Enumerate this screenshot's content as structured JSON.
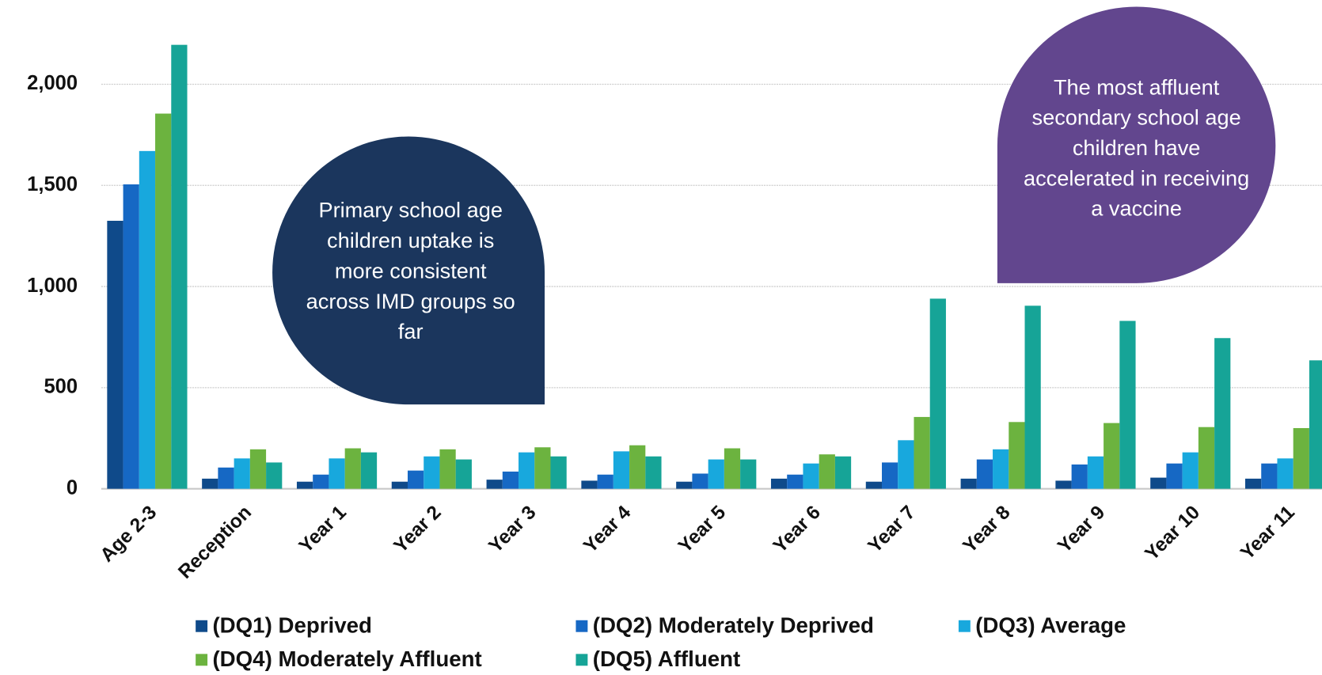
{
  "chart_data": {
    "type": "bar",
    "categories": [
      "Age 2-3",
      "Reception",
      "Year 1",
      "Year 2",
      "Year 3",
      "Year 4",
      "Year 5",
      "Year 6",
      "Year 7",
      "Year 8",
      "Year 9",
      "Year 10",
      "Year 11"
    ],
    "series": [
      {
        "name": "(DQ1) Deprived",
        "color": "#0f4a8a",
        "values": [
          1325,
          50,
          35,
          35,
          45,
          40,
          35,
          50,
          35,
          50,
          40,
          55,
          50
        ]
      },
      {
        "name": "(DQ2) Moderately Deprived",
        "color": "#1668c4",
        "values": [
          1505,
          105,
          70,
          90,
          85,
          70,
          75,
          70,
          130,
          145,
          120,
          125,
          125
        ]
      },
      {
        "name": "(DQ3) Average",
        "color": "#18a8dd",
        "values": [
          1670,
          150,
          150,
          160,
          180,
          185,
          145,
          125,
          240,
          195,
          160,
          180,
          150
        ]
      },
      {
        "name": "(DQ4) Moderately Affluent",
        "color": "#6cb33f",
        "values": [
          1855,
          195,
          200,
          195,
          205,
          215,
          200,
          170,
          355,
          330,
          325,
          305,
          300
        ]
      },
      {
        "name": "(DQ5) Affluent",
        "color": "#16a497",
        "values": [
          2195,
          130,
          180,
          145,
          160,
          160,
          145,
          160,
          940,
          905,
          830,
          745,
          635
        ]
      }
    ],
    "ylim": [
      0,
      2250
    ],
    "yticks": [
      0,
      500,
      {
        "value": 1000,
        "label": "1,000"
      },
      {
        "value": 1500,
        "label": "1,500"
      },
      {
        "value": 2000,
        "label": "2,000"
      }
    ],
    "grid": true,
    "legend": "bottom",
    "annotations": [
      {
        "text": "Primary school age children uptake is more consistent across IMD groups so far",
        "color": "#1b365d"
      },
      {
        "text": "The most affluent secondary school age children have accelerated in receiving a vaccine",
        "color": "#62468e"
      }
    ]
  }
}
